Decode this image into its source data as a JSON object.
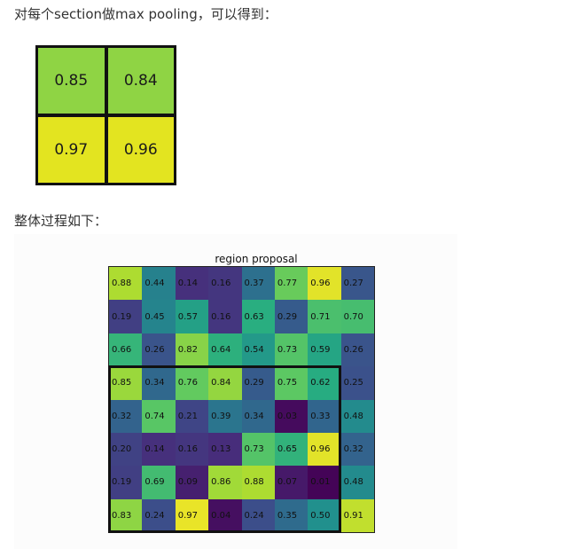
{
  "text": {
    "pool_intro": "对每个section做max pooling，可以得到：",
    "overall_intro": "整体过程如下："
  },
  "pooled": {
    "values": [
      "0.85",
      "0.84",
      "0.97",
      "0.96"
    ],
    "colors": [
      "#8fd444",
      "#8fd444",
      "#e3e420",
      "#e3e420"
    ]
  },
  "figure": {
    "title": "region proposal",
    "grid": [
      [
        "0.88",
        "0.44",
        "0.14",
        "0.16",
        "0.37",
        "0.77",
        "0.96",
        "0.27"
      ],
      [
        "0.19",
        "0.45",
        "0.57",
        "0.16",
        "0.63",
        "0.29",
        "0.71",
        "0.70"
      ],
      [
        "0.66",
        "0.26",
        "0.82",
        "0.64",
        "0.54",
        "0.73",
        "0.59",
        "0.26"
      ],
      [
        "0.85",
        "0.34",
        "0.76",
        "0.84",
        "0.29",
        "0.75",
        "0.62",
        "0.25"
      ],
      [
        "0.32",
        "0.74",
        "0.21",
        "0.39",
        "0.34",
        "0.03",
        "0.33",
        "0.48"
      ],
      [
        "0.20",
        "0.14",
        "0.16",
        "0.13",
        "0.73",
        "0.65",
        "0.96",
        "0.32"
      ],
      [
        "0.19",
        "0.69",
        "0.09",
        "0.86",
        "0.88",
        "0.07",
        "0.01",
        "0.48"
      ],
      [
        "0.83",
        "0.24",
        "0.97",
        "0.04",
        "0.24",
        "0.35",
        "0.50",
        "0.91"
      ]
    ],
    "colormap": "viridis"
  }
}
